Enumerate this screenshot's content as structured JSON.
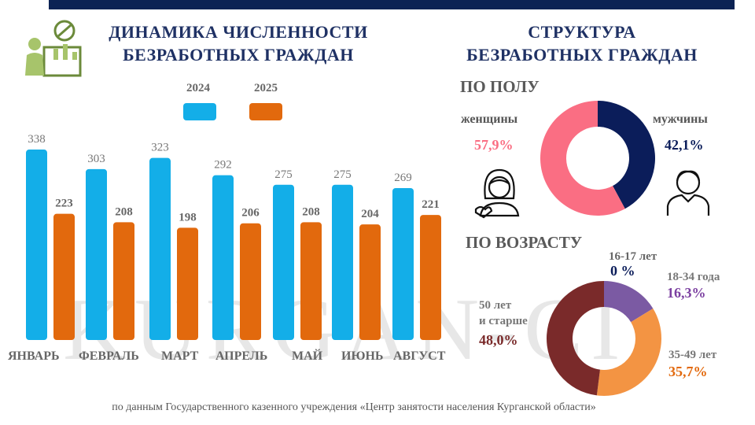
{
  "titles": {
    "left": [
      "ДИНАМИКА ЧИСЛЕННОСТИ",
      "БЕЗРАБОТНЫХ ГРАЖДАН"
    ],
    "right": [
      "СТРУКТУРА",
      "БЕЗРАБОТНЫХ ГРАЖДАН"
    ]
  },
  "watermark": "KURGAN-CI",
  "colors": {
    "blue": "#13aee8",
    "orange": "#e2690d",
    "female": "#fa6e83",
    "male": "#0b1d5a",
    "age_16_17": "#9e9e9e",
    "age_18_34": "#7b5aa3",
    "age_35_49": "#f39443",
    "age_50_plus": "#7a2a2a"
  },
  "chart_data": [
    {
      "type": "bar",
      "categories": [
        "ЯНВАРЬ",
        "ФЕВРАЛЬ",
        "МАРТ",
        "АПРЕЛЬ",
        "МАЙ",
        "ИЮНЬ",
        "АВГУСТ"
      ],
      "series": [
        {
          "name": "2024",
          "values": [
            338,
            303,
            323,
            292,
            275,
            275,
            269
          ]
        },
        {
          "name": "2025",
          "values": [
            223,
            208,
            198,
            206,
            208,
            204,
            221
          ]
        }
      ],
      "ylim": [
        0,
        350
      ],
      "legend": "top"
    },
    {
      "type": "pie",
      "section": "ПО ПОЛУ",
      "labels": [
        "женщины",
        "мужчины"
      ],
      "display": [
        "57,9%",
        "42,1%"
      ],
      "values": [
        57.9,
        42.1
      ]
    },
    {
      "type": "pie",
      "section": "ПО ВОЗРАСТУ",
      "labels": [
        "16-17 лет",
        "18-34 года",
        "35-49 лет",
        "50 лет и старше"
      ],
      "label_lines": [
        [
          "16-17 лет"
        ],
        [
          "18-34 года"
        ],
        [
          "35-49 лет"
        ],
        [
          "50 лет",
          "и старше"
        ]
      ],
      "display": [
        "0 %",
        "16,3%",
        "35,7%",
        "48,0%"
      ],
      "values": [
        0,
        16.3,
        35.7,
        48.0
      ]
    }
  ],
  "source": "по данным Государственного казенного учреждения «Центр занятости населения Курганской области»"
}
